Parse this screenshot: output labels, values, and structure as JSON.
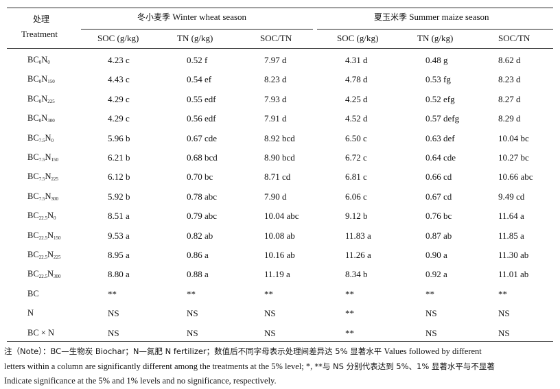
{
  "header": {
    "treatment_cn": "处理",
    "treatment_en": "Treatment",
    "wheat_cn": "冬小麦季",
    "wheat_en": "Winter wheat season",
    "maize_cn": "夏玉米季",
    "maize_en": "Summer maize season",
    "columns": [
      "SOC (g/kg)",
      "TN (g/kg)",
      "SOC/TN",
      "SOC (g/kg)",
      "TN (g/kg)",
      "SOC/TN"
    ]
  },
  "rows": [
    {
      "bc": "0",
      "n": "0",
      "vals": [
        "4.23 c",
        "0.52 f",
        "7.97 d",
        "4.31 d",
        "0.48 g",
        "8.62 d"
      ]
    },
    {
      "bc": "0",
      "n": "150",
      "vals": [
        "4.43 c",
        "0.54 ef",
        "8.23 d",
        "4.78 d",
        "0.53 fg",
        "8.23 d"
      ]
    },
    {
      "bc": "0",
      "n": "225",
      "vals": [
        "4.29 c",
        "0.55 edf",
        "7.93 d",
        "4.25 d",
        "0.52 efg",
        "8.27 d"
      ]
    },
    {
      "bc": "0",
      "n": "300",
      "vals": [
        "4.29 c",
        "0.56 edf",
        "7.91 d",
        "4.52 d",
        "0.57 defg",
        "8.29 d"
      ]
    },
    {
      "bc": "7.5",
      "n": "0",
      "vals": [
        "5.96 b",
        "0.67 cde",
        "8.92 bcd",
        "6.50 c",
        "0.63 def",
        "10.04 bc"
      ]
    },
    {
      "bc": "7.5",
      "n": "150",
      "vals": [
        "6.21 b",
        "0.68 bcd",
        "8.90 bcd",
        "6.72 c",
        "0.64 cde",
        "10.27 bc"
      ]
    },
    {
      "bc": "7.5",
      "n": "225",
      "vals": [
        "6.12 b",
        "0.70 bc",
        "8.71 cd",
        "6.81 c",
        "0.66 cd",
        "10.66 abc"
      ]
    },
    {
      "bc": "7.5",
      "n": "300",
      "vals": [
        "5.92 b",
        "0.78 abc",
        "7.90 d",
        "6.06 c",
        "0.67 cd",
        "9.49 cd"
      ]
    },
    {
      "bc": "22.5",
      "n": "0",
      "vals": [
        "8.51 a",
        "0.79 abc",
        "10.04 abc",
        "9.12 b",
        "0.76 bc",
        "11.64 a"
      ]
    },
    {
      "bc": "22.5",
      "n": "150",
      "vals": [
        "9.53 a",
        "0.82 ab",
        "10.08 ab",
        "11.83 a",
        "0.87 ab",
        "11.85 a"
      ]
    },
    {
      "bc": "22.5",
      "n": "225",
      "vals": [
        "8.95 a",
        "0.86 a",
        "10.16 ab",
        "11.26 a",
        "0.90 a",
        "11.30 ab"
      ]
    },
    {
      "bc": "22.5",
      "n": "300",
      "vals": [
        "8.80 a",
        "0.88 a",
        "11.19 a",
        "8.34 b",
        "0.92 a",
        "11.01 ab"
      ]
    }
  ],
  "effects": [
    {
      "label": "BC",
      "vals": [
        "**",
        "**",
        "**",
        "**",
        "**",
        "**"
      ]
    },
    {
      "label": "N",
      "vals": [
        "NS",
        "NS",
        "NS",
        "**",
        "NS",
        "NS"
      ]
    },
    {
      "label": "BC × N",
      "vals": [
        "NS",
        "NS",
        "NS",
        "**",
        "NS",
        "NS"
      ]
    }
  ],
  "note": {
    "line1_cn_a": "注（Note）：BC—生物炭 Biochar；N—氮肥 N fertilizer；数值后不同字母表示处理间差异达 5% 显著水平",
    "line1_en": " Values followed by different",
    "line2_en": "letters within a column are significantly different among the treatments at the 5% level; *, ",
    "line2_cn": "**与 NS 分别代表达到 5%、1% 显著水平与不显著",
    "line3_en": "Indicate significance at the 5% and 1% levels and no significance, respectively."
  }
}
